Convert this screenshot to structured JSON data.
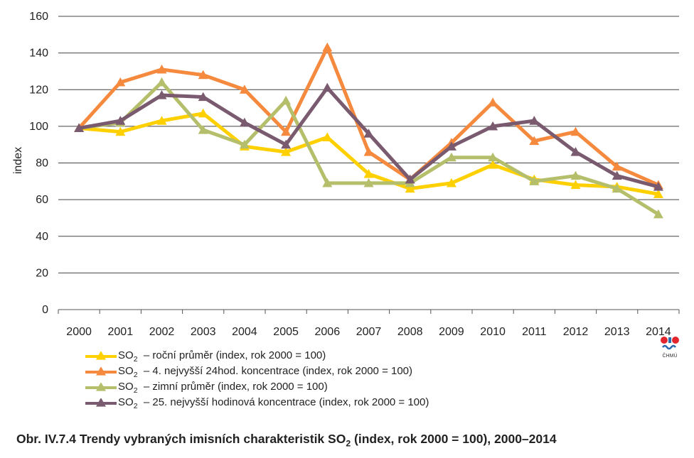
{
  "chart_data": {
    "type": "line",
    "ylabel": "index",
    "xlabel": "",
    "ylim": [
      0,
      160
    ],
    "y_ticks": [
      "0",
      "20",
      "40",
      "60",
      "80",
      "100",
      "120",
      "140",
      "160"
    ],
    "categories": [
      "2000",
      "2001",
      "2002",
      "2003",
      "2004",
      "2005",
      "2006",
      "2007",
      "2008",
      "2009",
      "2010",
      "2011",
      "2012",
      "2013",
      "2014"
    ],
    "grid": "horizontal",
    "legend_position": "bottom",
    "series": [
      {
        "name": "– roční průměr (index, rok 2000 = 100)",
        "color": "#FFD000",
        "values": [
          99,
          97,
          103,
          107,
          89,
          86,
          94,
          74,
          66,
          69,
          79,
          71,
          68,
          67,
          63
        ]
      },
      {
        "name": "– 4. nejvyšší 24hod. koncentrace (index, rok 2000 = 100)",
        "color": "#F58A3F",
        "values": [
          99,
          124,
          131,
          128,
          120,
          97,
          143,
          86,
          71,
          91,
          113,
          92,
          97,
          78,
          68
        ]
      },
      {
        "name": "– zimní průměr (index, rok 2000 = 100)",
        "color": "#B5BF6B",
        "values": [
          99,
          102,
          124,
          98,
          90,
          114,
          69,
          69,
          69,
          83,
          83,
          70,
          73,
          66,
          52
        ]
      },
      {
        "name": "– 25. nejvyšší hodinová koncentrace (index, rok 2000 = 100)",
        "color": "#7A5A6E",
        "values": [
          99,
          103,
          117,
          116,
          102,
          90,
          121,
          96,
          71,
          89,
          100,
          103,
          86,
          73,
          67
        ]
      }
    ],
    "legend_prefix": "SO",
    "legend_prefix_sub": "2"
  },
  "caption": {
    "prefix": "Obr. IV.7.4  Trendy vybraných imisních charakteristik SO",
    "sub": "2",
    "suffix": " (index, rok 2000 = 100), 2000–2014"
  },
  "logo": {
    "text": "ČHMÚ",
    "dot_color": "#E3262D",
    "wave_color": "#2B6CB0"
  }
}
